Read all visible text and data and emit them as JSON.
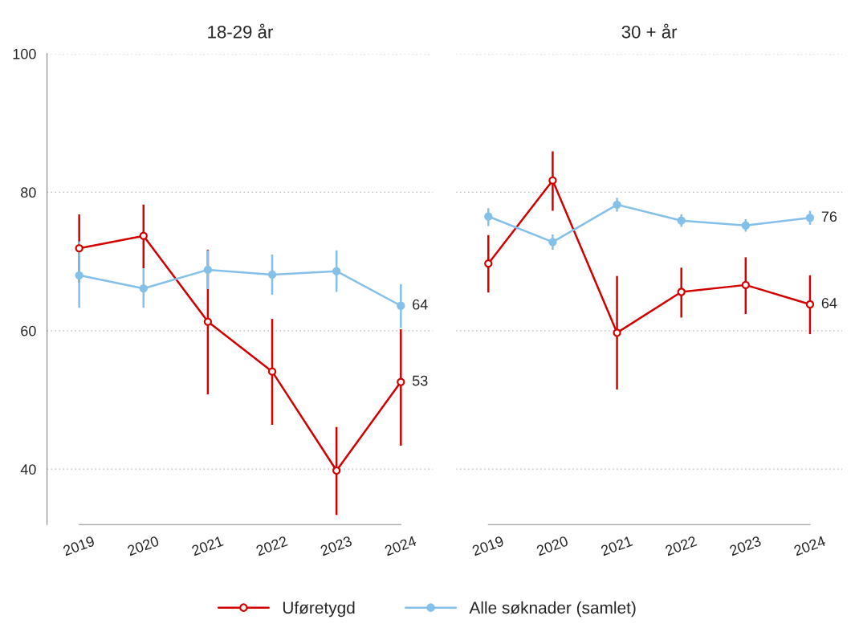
{
  "chart_data": [
    {
      "type": "line",
      "title": "18-29 år",
      "categories": [
        "2019",
        "2020",
        "2021",
        "2022",
        "2023",
        "2024"
      ],
      "ylim": [
        32,
        100
      ],
      "yticks": [
        40,
        60,
        80,
        100
      ],
      "grid": "y",
      "legend": "bottom",
      "marker": "circle",
      "series": [
        {
          "name": "Uføretygd",
          "color": "#d40000",
          "values": [
            71.9,
            73.7,
            61.3,
            54.1,
            39.8,
            52.6
          ],
          "errors": [
            [
              67,
              76.8
            ],
            [
              69,
              78.2
            ],
            [
              50.8,
              71.7
            ],
            [
              46.4,
              61.7
            ],
            [
              33.4,
              46.1
            ],
            [
              43.4,
              60.2
            ]
          ],
          "value_labels": [
            null,
            null,
            null,
            null,
            null,
            "53"
          ]
        },
        {
          "name": "Alle søknader (samlet)",
          "color": "#85c0ea",
          "values": [
            68.0,
            66.1,
            68.8,
            68.1,
            68.6,
            63.6
          ],
          "errors": [
            [
              63.3,
              72.9
            ],
            [
              63.3,
              69.0
            ],
            [
              66.0,
              71.6
            ],
            [
              65.2,
              71.0
            ],
            [
              65.6,
              71.6
            ],
            [
              60.4,
              66.7
            ]
          ],
          "value_labels": [
            null,
            null,
            null,
            null,
            null,
            "64"
          ]
        }
      ]
    },
    {
      "type": "line",
      "title": "30 + år",
      "categories": [
        "2019",
        "2020",
        "2021",
        "2022",
        "2023",
        "2024"
      ],
      "ylim": [
        32,
        100
      ],
      "yticks": [
        40,
        60,
        80,
        100
      ],
      "grid": "y",
      "tick_labels": "x",
      "legend": "bottom",
      "marker": "circle",
      "series": [
        {
          "name": "Uføretygd",
          "color": "#d40000",
          "values": [
            69.7,
            81.7,
            59.7,
            65.6,
            66.6,
            63.8
          ],
          "errors": [
            [
              65.5,
              73.8
            ],
            [
              77.3,
              85.9
            ],
            [
              51.5,
              67.9
            ],
            [
              61.9,
              69.1
            ],
            [
              62.4,
              70.6
            ],
            [
              59.5,
              68.0
            ]
          ],
          "value_labels": [
            null,
            null,
            null,
            null,
            null,
            "64"
          ]
        },
        {
          "name": "Alle søknader (samlet)",
          "color": "#85c0ea",
          "values": [
            76.5,
            72.8,
            78.2,
            75.9,
            75.2,
            76.3
          ],
          "errors": [
            [
              75.1,
              77.7
            ],
            [
              71.7,
              73.9
            ],
            [
              77.2,
              79.2
            ],
            [
              75.0,
              76.8
            ],
            [
              74.3,
              76.1
            ],
            [
              75.3,
              77.3
            ]
          ],
          "value_labels": [
            null,
            null,
            null,
            null,
            null,
            "76"
          ]
        }
      ]
    }
  ]
}
